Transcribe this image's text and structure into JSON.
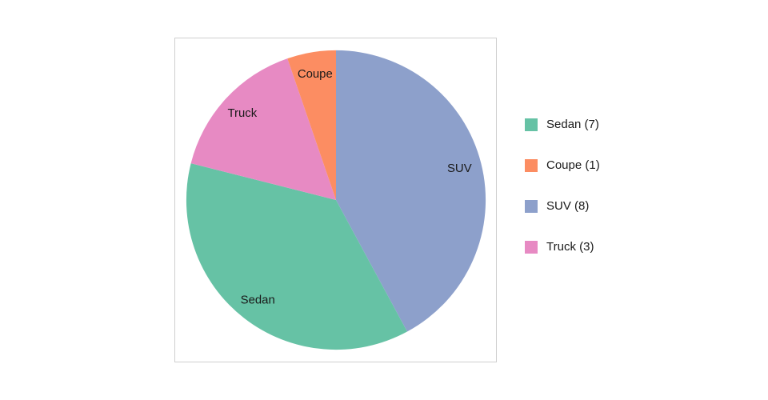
{
  "page": {
    "background": "#ffffff"
  },
  "chart_data": {
    "type": "pie",
    "total": 19,
    "start_angle": "top",
    "direction": "clockwise",
    "legend_position": "right",
    "slices": [
      {
        "label": "SUV",
        "value": 8,
        "color": "#8da0cb"
      },
      {
        "label": "Sedan",
        "value": 7,
        "color": "#66c2a5"
      },
      {
        "label": "Truck",
        "value": 3,
        "color": "#e78ac3"
      },
      {
        "label": "Coupe",
        "value": 1,
        "color": "#fc8d62"
      }
    ],
    "legend": [
      {
        "label": "Sedan (7)",
        "color": "#66c2a5"
      },
      {
        "label": "Coupe (1)",
        "color": "#fc8d62"
      },
      {
        "label": "SUV (8)",
        "color": "#8da0cb"
      },
      {
        "label": "Truck (3)",
        "color": "#e78ac3"
      }
    ]
  }
}
